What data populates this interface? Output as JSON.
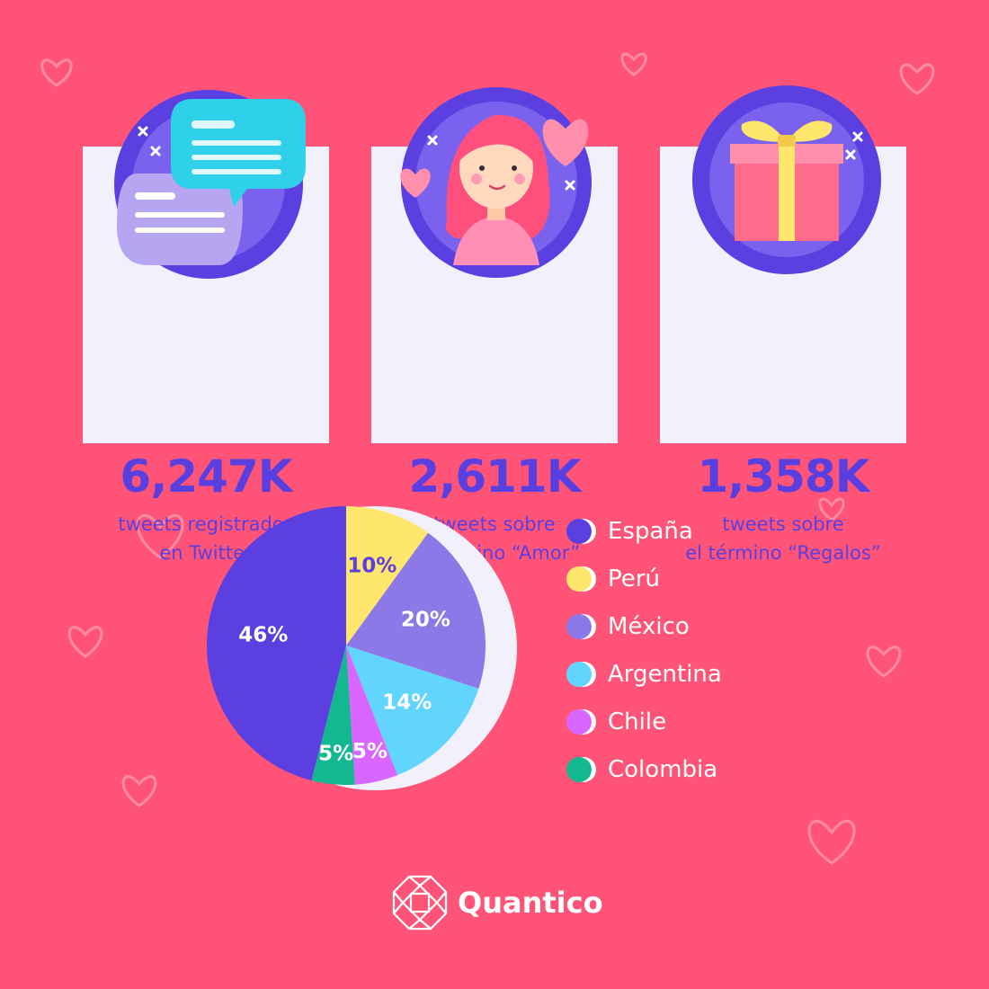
{
  "stats": [
    {
      "value": "6,247K",
      "line1": "tweets registrados",
      "line2": "en Twitter",
      "icon": "chat-bubbles-icon"
    },
    {
      "value": "2,611K",
      "line1": "tweets sobre",
      "line2": "el término “Amor”",
      "icon": "girl-with-hearts-icon"
    },
    {
      "value": "1,358K",
      "line1": "tweets sobre",
      "line2": "el término “Regalos”",
      "icon": "gift-box-icon"
    }
  ],
  "chart_data": {
    "type": "pie",
    "title": "",
    "slices": [
      {
        "label": "Perú",
        "value": 10,
        "display": "10%",
        "color": "#ffe66d"
      },
      {
        "label": "México",
        "value": 20,
        "display": "20%",
        "color": "#8c78e6"
      },
      {
        "label": "Argentina",
        "value": 14,
        "display": "14%",
        "color": "#62d5ff"
      },
      {
        "label": "Chile",
        "value": 5,
        "display": "5%",
        "color": "#d966ff"
      },
      {
        "label": "Colombia",
        "value": 5,
        "display": "5%",
        "color": "#13b891"
      },
      {
        "label": "España",
        "value": 46,
        "display": "46%",
        "color": "#5b3fe0"
      }
    ],
    "legend_order": [
      "España",
      "Perú",
      "México",
      "Argentina",
      "Chile",
      "Colombia"
    ],
    "legend_position": "right"
  },
  "colors": {
    "background": "#ff5477",
    "card": "#f2f0fb",
    "accent": "#5a3fe0"
  },
  "brand": {
    "name": "Quantico",
    "icon": "quantico-logo-icon"
  }
}
